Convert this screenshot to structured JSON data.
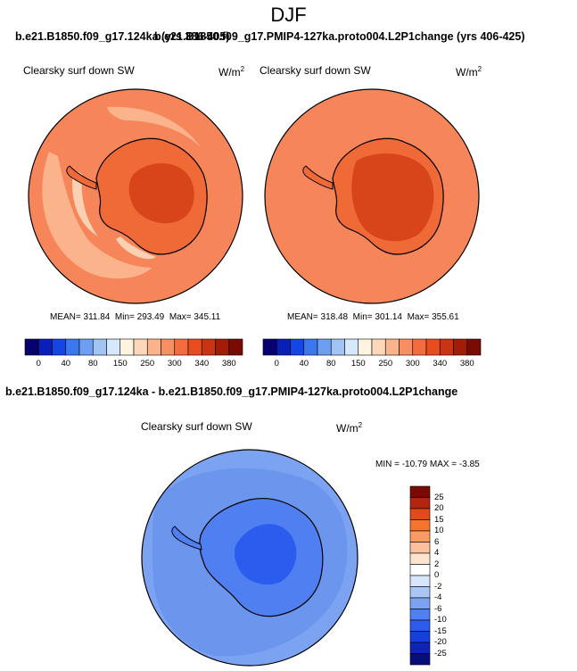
{
  "page_title": "DJF",
  "panels": [
    {
      "case_title": "b.e21.B1850.f09_g17.124ka (yrs 386-405)",
      "variable": "Clearsky surf down SW",
      "units": "W/m",
      "units_exp": "2",
      "mean_label": "MEAN=",
      "mean": "311.84",
      "min_label": "Min=",
      "min": "293.49",
      "max_label": "Max=",
      "max": "345.11"
    },
    {
      "case_title": "b.e21.B1850.f09_g17.PMIP4-127ka.proto004.L2P1change (yrs 406-425)",
      "variable": "Clearsky surf down SW",
      "units": "W/m",
      "units_exp": "2",
      "mean_label": "MEAN=",
      "mean": "318.48",
      "min_label": "Min=",
      "min": "301.14",
      "max_label": "Max=",
      "max": "355.61"
    }
  ],
  "diff_panel": {
    "case_title": "b.e21.B1850.f09_g17.124ka - b.e21.B1850.f09_g17.PMIP4-127ka.proto004.L2P1change",
    "variable": "Clearsky surf down SW",
    "units": "W/m",
    "units_exp": "2",
    "minmax_text": "MIN = -10.79 MAX =  -3.85"
  },
  "abs_colorbar": {
    "colors": [
      "#08006e",
      "#0a1fb8",
      "#1446e6",
      "#3b78f0",
      "#6c9ef2",
      "#a1c4f5",
      "#d6e8fb",
      "#fff4e0",
      "#fdd7b8",
      "#fbb38c",
      "#f88f63",
      "#f46b3d",
      "#e84c1f",
      "#c93512",
      "#a21c08",
      "#7a0b03"
    ],
    "labels": [
      "0",
      "40",
      "80",
      "150",
      "250",
      "300",
      "340",
      "380"
    ]
  },
  "diff_colorbar": {
    "colors": [
      "#7a0b03",
      "#b42511",
      "#e04b1c",
      "#f7742f",
      "#fa9a64",
      "#fcc19c",
      "#fee4cf",
      "#ffffff",
      "#d7e6fb",
      "#a9c6f5",
      "#7ba3f1",
      "#4f7ff0",
      "#2c5cee",
      "#173fdc",
      "#0d24b5",
      "#070e78"
    ],
    "labels": [
      "25",
      "20",
      "15",
      "10",
      "6",
      "4",
      "2",
      "0",
      "-2",
      "-4",
      "-6",
      "-10",
      "-15",
      "-20",
      "-25"
    ]
  }
}
